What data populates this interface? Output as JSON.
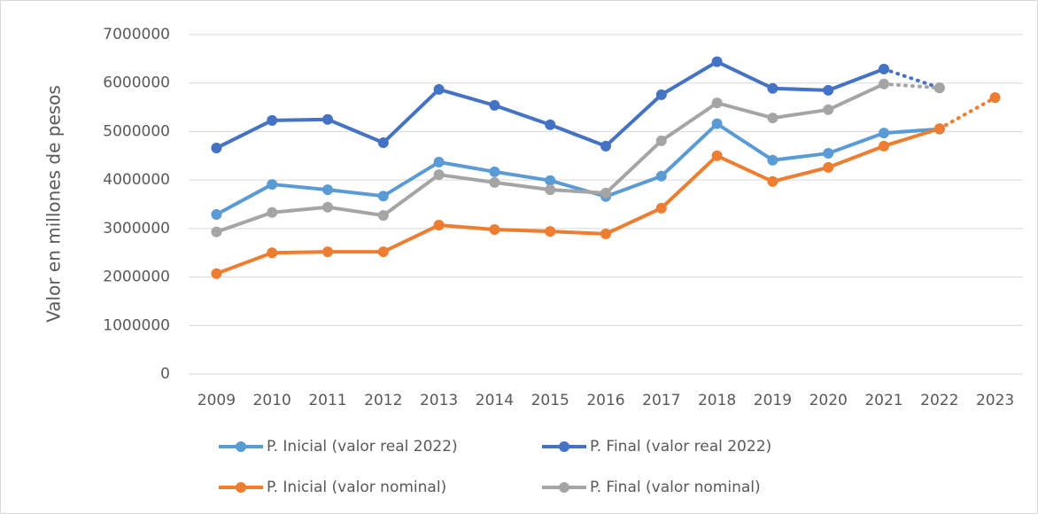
{
  "chart_data": {
    "type": "line",
    "y_label": "Valor en millones de pesos",
    "categories": [
      "2009",
      "2010",
      "2011",
      "2012",
      "2013",
      "2014",
      "2015",
      "2016",
      "2017",
      "2018",
      "2019",
      "2020",
      "2021",
      "2022",
      "2023"
    ],
    "ylim": [
      0,
      7000000
    ],
    "yticks": [
      0,
      1000000,
      2000000,
      3000000,
      4000000,
      5000000,
      6000000,
      7000000
    ],
    "grid": true,
    "legend": "bottom",
    "series": [
      {
        "name": "P. Inicial (valor real 2022)",
        "color": "#5b9bd5",
        "values": [
          3290000,
          3910000,
          3800000,
          3670000,
          4370000,
          4170000,
          3990000,
          3660000,
          4080000,
          5160000,
          4410000,
          4550000,
          4970000,
          5050000,
          null
        ]
      },
      {
        "name": "P. Final (valor real 2022)",
        "color": "#4472c4",
        "dotted_from": 12,
        "values": [
          4660000,
          5230000,
          5250000,
          4770000,
          5870000,
          5540000,
          5140000,
          4700000,
          5760000,
          6440000,
          5890000,
          5850000,
          6290000,
          5900000,
          null
        ]
      },
      {
        "name": "P. Inicial (valor nominal)",
        "color": "#ed7d31",
        "dotted_from": 13,
        "values": [
          2070000,
          2500000,
          2520000,
          2520000,
          3070000,
          2980000,
          2940000,
          2890000,
          3420000,
          4500000,
          3970000,
          4260000,
          4700000,
          5060000,
          5700000
        ]
      },
      {
        "name": "P. Final (valor nominal)",
        "color": "#a5a5a5",
        "dotted_from": 12,
        "values": [
          2930000,
          3330000,
          3440000,
          3270000,
          4110000,
          3950000,
          3800000,
          3730000,
          4810000,
          5590000,
          5280000,
          5450000,
          5980000,
          5900000,
          null
        ]
      }
    ]
  }
}
